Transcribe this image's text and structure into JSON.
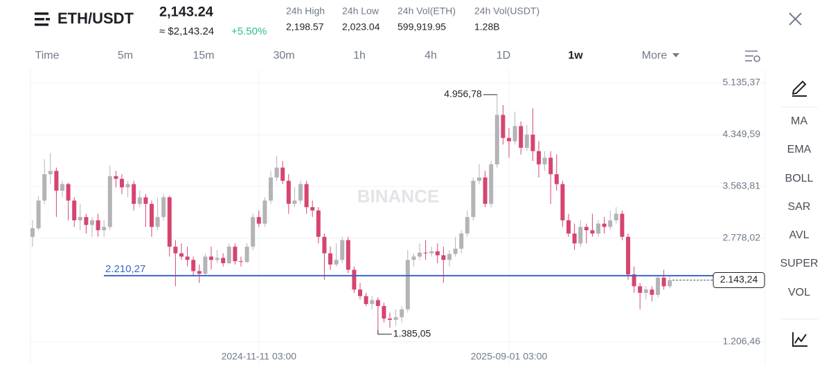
{
  "header": {
    "pair": "ETH/USDT",
    "price": "2,143.24",
    "approx": "≈ $2,143.24",
    "change": "+5.50%",
    "stats": [
      {
        "label": "24h High",
        "value": "2,198.57"
      },
      {
        "label": "24h Low",
        "value": "2,023.04"
      },
      {
        "label": "24h Vol(ETH)",
        "value": "599,919.95"
      },
      {
        "label": "24h Vol(USDT)",
        "value": "1.28B"
      }
    ]
  },
  "timeframes": [
    "Time",
    "5m",
    "15m",
    "30m",
    "1h",
    "4h",
    "1D",
    "1w",
    "More"
  ],
  "indicators": [
    "MA",
    "EMA",
    "BOLL",
    "SAR",
    "AVL",
    "SUPER",
    "VOL"
  ],
  "watermark": "BINANCE",
  "chart_data": {
    "type": "candlestick",
    "categories": [
      null,
      null,
      null,
      null,
      null,
      null,
      null,
      null,
      null,
      null,
      null,
      null,
      null,
      null,
      null,
      null,
      null,
      null,
      null,
      null,
      null,
      null,
      null,
      null,
      null,
      null,
      null,
      null,
      null,
      null,
      null,
      null,
      null,
      null,
      null,
      null,
      null,
      null,
      "2024-11-11 03:00",
      null,
      null,
      null,
      null,
      null,
      null,
      null,
      null,
      null,
      null,
      null,
      null,
      null,
      null,
      null,
      null,
      null,
      null,
      null,
      null,
      null,
      null,
      null,
      null,
      null,
      null,
      null,
      null,
      null,
      null,
      null,
      null,
      null,
      null,
      null,
      null,
      null,
      null,
      null,
      null,
      null,
      "2025-09-01 03:00",
      null,
      null,
      null,
      null,
      null,
      null,
      null,
      null,
      null,
      null,
      null,
      null,
      null,
      null,
      null,
      null,
      null,
      null,
      null,
      null,
      null,
      null,
      null,
      null,
      null,
      null,
      null
    ],
    "open": [
      2800,
      2930,
      3350,
      3750,
      3800,
      3500,
      3600,
      3350,
      3050,
      3100,
      2980,
      3050,
      2900,
      2950,
      3720,
      3680,
      3550,
      3600,
      3300,
      3400,
      3300,
      2950,
      3100,
      3400,
      2650,
      2550,
      2500,
      2450,
      2280,
      2240,
      2500,
      2450,
      2480,
      2400,
      2650,
      2430,
      2420,
      2650,
      3100,
      3000,
      3350,
      3700,
      3850,
      3650,
      3300,
      3350,
      3600,
      3250,
      3200,
      2800,
      2550,
      2380,
      2450,
      2750,
      2300,
      2000,
      1900,
      1780,
      1840,
      1750,
      1560,
      1540,
      1580,
      1700,
      2450,
      2500,
      2560,
      2550,
      2580,
      2520,
      2450,
      2540,
      2620,
      2850,
      3100,
      3650,
      3700,
      3300,
      3900,
      4650,
      4300,
      4250,
      4480,
      4150,
      4350,
      4100,
      3900,
      4000,
      3750,
      3600,
      3050,
      2850,
      2700,
      2950,
      2900,
      2850,
      3000,
      2950,
      3050,
      3150,
      2800,
      2230,
      2050,
      1950,
      2000,
      1920,
      2180,
      2050
    ],
    "high": [
      3050,
      3420,
      3980,
      4070,
      3850,
      3650,
      3620,
      3400,
      3300,
      3150,
      3100,
      3150,
      3050,
      3880,
      3800,
      3750,
      3650,
      3650,
      3500,
      3450,
      3350,
      3400,
      3450,
      3420,
      2750,
      2700,
      2650,
      2500,
      2380,
      2550,
      2650,
      2600,
      2550,
      2700,
      2700,
      2500,
      2700,
      3150,
      3200,
      3400,
      3800,
      4030,
      3950,
      3750,
      3550,
      3650,
      3650,
      3350,
      3250,
      2850,
      2650,
      2700,
      2800,
      2800,
      2350,
      2100,
      1950,
      1900,
      1880,
      1800,
      1650,
      1700,
      1750,
      2600,
      2550,
      2700,
      2750,
      2650,
      2700,
      2650,
      2600,
      2800,
      2900,
      3200,
      3700,
      3900,
      3800,
      3950,
      4956.78,
      4800,
      4450,
      4700,
      4550,
      4500,
      4750,
      4250,
      4100,
      4100,
      4050,
      3650,
      3150,
      3000,
      3050,
      3000,
      3150,
      3050,
      3100,
      3200,
      3250,
      3200,
      2850,
      2350,
      2100,
      2050,
      2050,
      2200,
      2300,
      2200
    ],
    "low": [
      2650,
      2900,
      3300,
      3600,
      3100,
      3400,
      3050,
      2950,
      2900,
      2850,
      2800,
      2800,
      2800,
      2900,
      3550,
      3450,
      3400,
      3200,
      3250,
      2950,
      2800,
      2900,
      3050,
      2500,
      2050,
      2450,
      2350,
      2200,
      2100,
      2200,
      2300,
      2400,
      2350,
      2380,
      2380,
      2350,
      2400,
      2600,
      2950,
      2950,
      3300,
      3650,
      3600,
      3150,
      3250,
      3300,
      3150,
      3100,
      2700,
      2150,
      2300,
      2350,
      2400,
      2250,
      1950,
      1850,
      1750,
      1700,
      1385.05,
      1500,
      1420,
      1450,
      1500,
      1650,
      2350,
      2450,
      2450,
      2500,
      2400,
      2100,
      2350,
      2500,
      2550,
      2800,
      3050,
      3600,
      3250,
      3250,
      3850,
      4200,
      4000,
      4200,
      4050,
      4100,
      3950,
      3700,
      3800,
      3300,
      3500,
      2950,
      2800,
      2600,
      2650,
      2700,
      2800,
      2800,
      2850,
      2900,
      3000,
      2750,
      2150,
      1950,
      1700,
      1850,
      1820,
      1880,
      2000,
      2020
    ],
    "close": [
      2930,
      3350,
      3750,
      3800,
      3500,
      3600,
      3350,
      3050,
      3100,
      2980,
      3050,
      2900,
      2950,
      3720,
      3680,
      3550,
      3600,
      3300,
      3400,
      3300,
      2950,
      3100,
      3400,
      2650,
      2550,
      2500,
      2450,
      2280,
      2240,
      2500,
      2450,
      2480,
      2400,
      2650,
      2430,
      2420,
      2650,
      3100,
      3000,
      3350,
      3700,
      3850,
      3650,
      3300,
      3350,
      3600,
      3250,
      3200,
      2800,
      2550,
      2380,
      2450,
      2750,
      2300,
      2000,
      1900,
      1780,
      1840,
      1750,
      1560,
      1540,
      1580,
      1700,
      2450,
      2500,
      2560,
      2550,
      2580,
      2520,
      2450,
      2540,
      2620,
      2850,
      3100,
      3650,
      3700,
      3300,
      3900,
      4650,
      4300,
      4250,
      4480,
      4150,
      4350,
      4100,
      3900,
      4000,
      3750,
      3600,
      3050,
      2850,
      2700,
      2950,
      2900,
      2850,
      3000,
      2950,
      3050,
      3150,
      2800,
      2230,
      2050,
      1950,
      2000,
      1920,
      2180,
      2050,
      2143.24
    ],
    "up_color": "#b3b3b8",
    "down_color": "#d6456f",
    "ylim": [
      891,
      5345
    ],
    "yticks": [
      {
        "value": 1206.46,
        "label": "1.206,46"
      },
      {
        "value": 2778.02,
        "label": "2.778,02"
      },
      {
        "value": 3563.81,
        "label": "3.563,81"
      },
      {
        "value": 4349.59,
        "label": "4.349,59"
      },
      {
        "value": 5135.37,
        "label": "5.135,37"
      }
    ],
    "max_label": "4.956,78",
    "min_label": "1.385,05",
    "last_label": "2.143,24",
    "hline": {
      "value": 2210.27,
      "label": "2.210,27",
      "color": "#3a64c8"
    },
    "grid": true
  }
}
